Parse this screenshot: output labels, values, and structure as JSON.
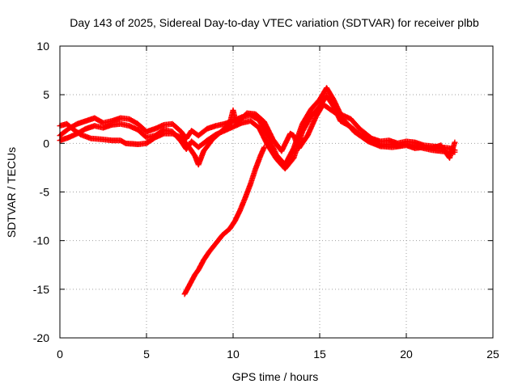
{
  "chart_data": {
    "type": "scatter",
    "title": "Day 143 of 2025, Sidereal Day-to-day VTEC variation (SDTVAR) for receiver plbb",
    "xlabel": "GPS time / hours",
    "ylabel": "SDTVAR / TECUs",
    "xlim": [
      0,
      25
    ],
    "ylim": [
      -20,
      10
    ],
    "xticks": [
      0,
      5,
      10,
      15,
      20,
      25
    ],
    "yticks": [
      -20,
      -15,
      -10,
      -5,
      0,
      5,
      10
    ],
    "grid": true,
    "marker": "+",
    "color": "#ff0000",
    "series": [
      {
        "name": "track-a",
        "points": [
          [
            0.0,
            0.8
          ],
          [
            0.5,
            1.5
          ],
          [
            1.0,
            2.0
          ],
          [
            1.5,
            2.3
          ],
          [
            2.0,
            2.6
          ],
          [
            2.5,
            2.1
          ],
          [
            3.0,
            2.3
          ],
          [
            3.5,
            2.6
          ],
          [
            4.0,
            2.5
          ],
          [
            4.5,
            2.0
          ],
          [
            5.0,
            1.2
          ],
          [
            5.5,
            1.5
          ],
          [
            6.0,
            1.9
          ],
          [
            6.5,
            2.0
          ],
          [
            7.0,
            1.2
          ],
          [
            7.3,
            0.5
          ],
          [
            7.6,
            1.3
          ],
          [
            8.0,
            0.8
          ],
          [
            8.5,
            1.5
          ],
          [
            9.0,
            1.8
          ],
          [
            9.5,
            2.0
          ],
          [
            10.0,
            2.3
          ],
          [
            10.5,
            2.7
          ],
          [
            11.0,
            2.9
          ],
          [
            11.5,
            2.4
          ],
          [
            12.0,
            0.8
          ],
          [
            12.5,
            -1.2
          ],
          [
            13.0,
            -2.2
          ],
          [
            13.5,
            -0.5
          ],
          [
            14.0,
            2.0
          ],
          [
            14.5,
            3.5
          ],
          [
            15.0,
            4.5
          ],
          [
            15.4,
            5.7
          ],
          [
            15.8,
            4.5
          ],
          [
            16.2,
            3.0
          ],
          [
            16.8,
            2.5
          ],
          [
            17.3,
            1.5
          ],
          [
            18.0,
            0.5
          ],
          [
            18.5,
            0.2
          ],
          [
            19.0,
            0.3
          ],
          [
            19.5,
            0.0
          ],
          [
            20.0,
            0.2
          ],
          [
            20.5,
            0.1
          ],
          [
            21.0,
            -0.2
          ],
          [
            21.5,
            -0.3
          ],
          [
            22.0,
            -0.4
          ],
          [
            22.5,
            -0.5
          ],
          [
            22.8,
            -0.7
          ]
        ]
      },
      {
        "name": "track-b",
        "points": [
          [
            0.0,
            0.3
          ],
          [
            0.5,
            0.6
          ],
          [
            1.0,
            1.0
          ],
          [
            1.5,
            1.5
          ],
          [
            2.0,
            1.8
          ],
          [
            2.5,
            1.6
          ],
          [
            3.0,
            1.9
          ],
          [
            3.5,
            2.0
          ],
          [
            4.0,
            1.8
          ],
          [
            4.5,
            1.4
          ],
          [
            5.0,
            0.6
          ],
          [
            5.5,
            0.8
          ],
          [
            6.0,
            1.4
          ],
          [
            6.5,
            1.2
          ],
          [
            7.0,
            0.2
          ],
          [
            7.3,
            -0.6
          ],
          [
            7.6,
            0.2
          ],
          [
            8.0,
            -0.4
          ],
          [
            8.5,
            0.3
          ],
          [
            9.0,
            0.9
          ],
          [
            9.5,
            1.3
          ],
          [
            10.0,
            1.7
          ],
          [
            10.5,
            2.1
          ],
          [
            11.0,
            2.3
          ],
          [
            11.5,
            1.6
          ],
          [
            12.0,
            -0.2
          ],
          [
            12.5,
            -1.6
          ],
          [
            13.0,
            -2.6
          ],
          [
            13.5,
            -1.5
          ],
          [
            14.0,
            1.2
          ],
          [
            14.5,
            2.8
          ],
          [
            15.0,
            3.8
          ],
          [
            15.4,
            4.9
          ],
          [
            15.8,
            3.8
          ],
          [
            16.2,
            2.3
          ],
          [
            16.8,
            1.7
          ],
          [
            17.3,
            0.9
          ],
          [
            18.0,
            0.1
          ],
          [
            18.5,
            -0.2
          ],
          [
            19.0,
            -0.1
          ],
          [
            19.5,
            -0.3
          ],
          [
            20.0,
            -0.1
          ],
          [
            20.5,
            -0.3
          ],
          [
            21.0,
            -0.5
          ],
          [
            21.5,
            -0.7
          ],
          [
            22.0,
            -0.8
          ],
          [
            22.5,
            -0.9
          ],
          [
            22.8,
            -0.9
          ]
        ]
      },
      {
        "name": "track-c",
        "points": [
          [
            0.0,
            1.8
          ],
          [
            0.4,
            2.0
          ],
          [
            0.8,
            1.4
          ],
          [
            1.2,
            0.9
          ],
          [
            1.8,
            0.5
          ],
          [
            2.5,
            0.4
          ],
          [
            3.0,
            0.3
          ],
          [
            3.5,
            0.3
          ],
          [
            3.8,
            0.0
          ],
          [
            4.5,
            -0.1
          ],
          [
            5.0,
            0.0
          ],
          [
            5.5,
            0.6
          ],
          [
            6.0,
            1.0
          ],
          [
            6.5,
            1.0
          ],
          [
            7.0,
            0.6
          ],
          [
            7.5,
            -0.5
          ],
          [
            7.8,
            -1.3
          ],
          [
            8.0,
            -2.2
          ],
          [
            8.3,
            -0.8
          ],
          [
            8.8,
            0.4
          ],
          [
            9.3,
            1.2
          ],
          [
            9.8,
            2.0
          ],
          [
            10.0,
            3.4
          ],
          [
            10.2,
            2.0
          ],
          [
            10.8,
            3.1
          ],
          [
            11.3,
            3.0
          ],
          [
            11.8,
            2.2
          ],
          [
            12.3,
            0.4
          ],
          [
            12.8,
            -0.8
          ],
          [
            13.3,
            1.0
          ],
          [
            13.5,
            0.8
          ],
          [
            13.8,
            -0.5
          ],
          [
            14.3,
            0.8
          ],
          [
            14.8,
            2.8
          ],
          [
            15.2,
            4.0
          ],
          [
            15.6,
            3.5
          ],
          [
            16.0,
            3.0
          ],
          [
            16.5,
            2.2
          ],
          [
            17.0,
            1.2
          ],
          [
            17.8,
            0.2
          ],
          [
            18.5,
            -0.3
          ],
          [
            19.2,
            -0.4
          ],
          [
            20.0,
            -0.2
          ],
          [
            20.5,
            -0.5
          ],
          [
            21.0,
            -0.4
          ],
          [
            21.5,
            -0.5
          ],
          [
            22.0,
            -0.2
          ],
          [
            22.3,
            -1.0
          ],
          [
            22.5,
            -1.5
          ],
          [
            22.8,
            0.1
          ]
        ]
      },
      {
        "name": "track-d",
        "points": [
          [
            7.2,
            -15.5
          ],
          [
            7.5,
            -14.5
          ],
          [
            7.8,
            -13.5
          ],
          [
            8.0,
            -13.0
          ],
          [
            8.3,
            -12.0
          ],
          [
            8.6,
            -11.2
          ],
          [
            9.0,
            -10.3
          ],
          [
            9.4,
            -9.4
          ],
          [
            9.8,
            -8.8
          ],
          [
            10.1,
            -8.0
          ],
          [
            10.4,
            -6.9
          ],
          [
            10.7,
            -5.6
          ],
          [
            11.0,
            -4.2
          ],
          [
            11.3,
            -2.6
          ],
          [
            11.6,
            -1.2
          ],
          [
            11.8,
            -0.4
          ]
        ]
      }
    ]
  }
}
